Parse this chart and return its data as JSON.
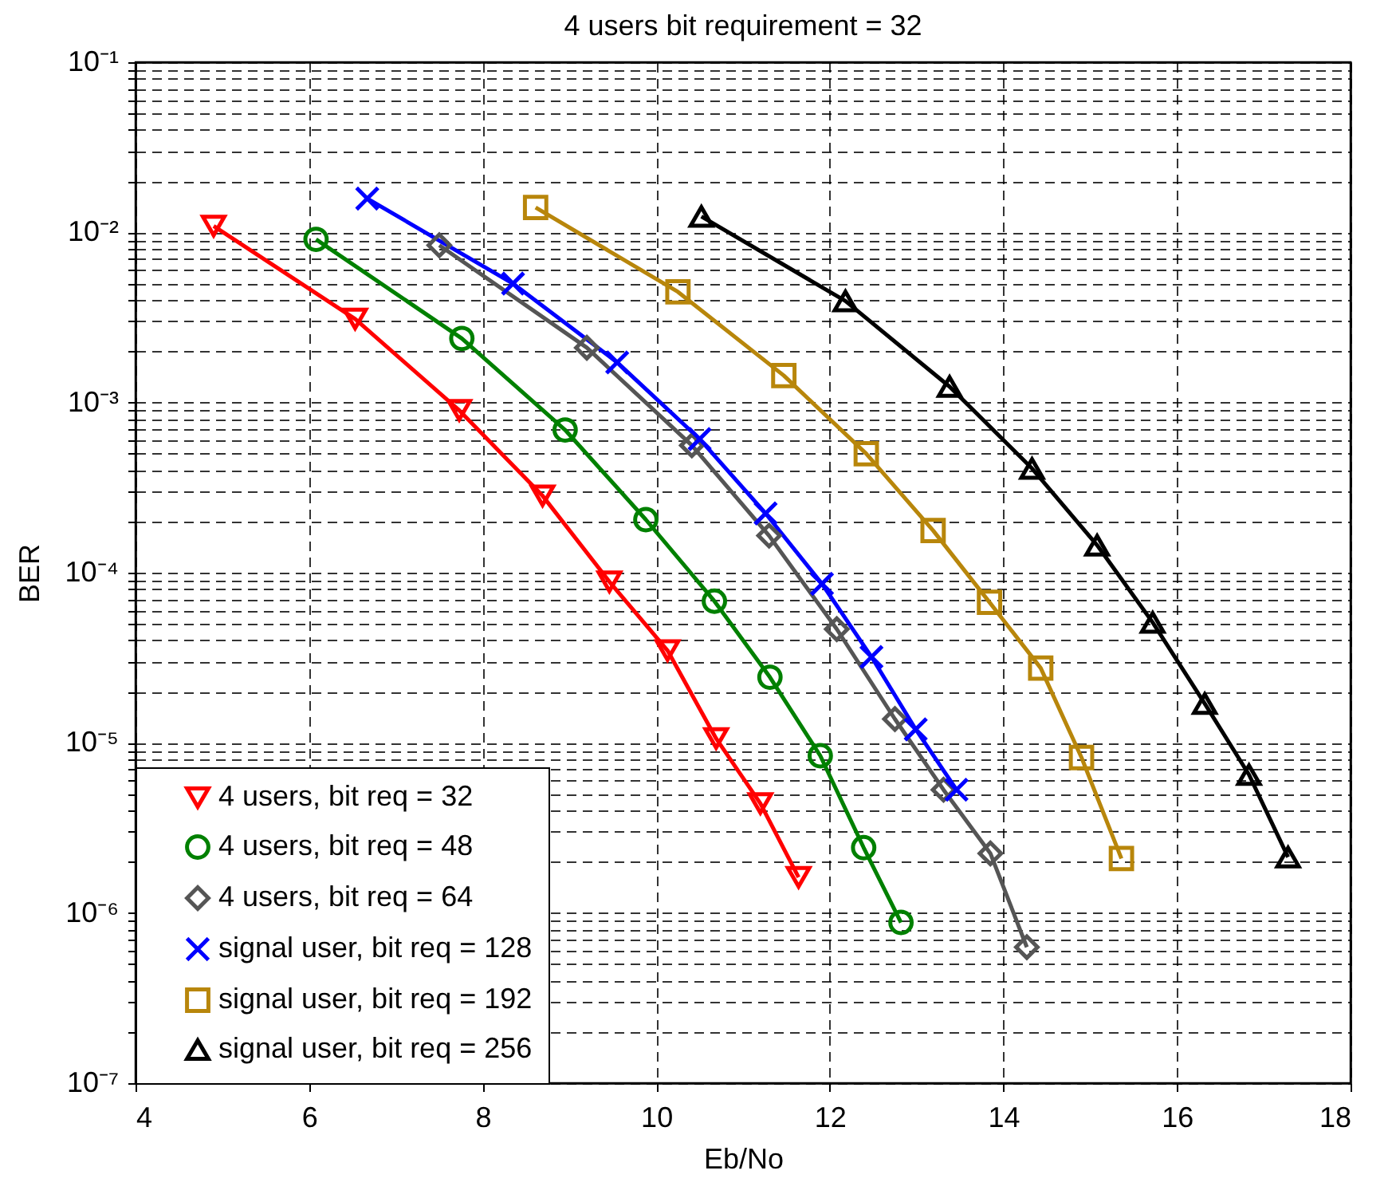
{
  "chart_data": {
    "type": "line",
    "title": "4 users bit requirement = 32",
    "xlabel": "Eb/No",
    "ylabel": "BER",
    "log": "y",
    "grid": true,
    "legend": "bottom left",
    "line_style": "solid",
    "xlim": [
      4,
      18
    ],
    "xticks": [
      4,
      6,
      8,
      10,
      12,
      14,
      16,
      18
    ],
    "ylim": [
      1e-07,
      0.1
    ],
    "yticks": [
      {
        "value": 1e-07,
        "label": "10⁻⁷"
      },
      {
        "value": 2e-07,
        "label": null
      },
      {
        "value": 3e-07,
        "label": null
      },
      {
        "value": 4e-07,
        "label": null
      },
      {
        "value": 5e-07,
        "label": null
      },
      {
        "value": 6e-07,
        "label": null
      },
      {
        "value": 7e-07,
        "label": null
      },
      {
        "value": 8e-07,
        "label": null
      },
      {
        "value": 9e-07,
        "label": null
      },
      {
        "value": 1e-06,
        "label": "10⁻⁶"
      },
      {
        "value": 2e-06,
        "label": null
      },
      {
        "value": 3e-06,
        "label": null
      },
      {
        "value": 4e-06,
        "label": null
      },
      {
        "value": 5e-06,
        "label": null
      },
      {
        "value": 6e-06,
        "label": null
      },
      {
        "value": 7e-06,
        "label": null
      },
      {
        "value": 8e-06,
        "label": null
      },
      {
        "value": 9e-06,
        "label": null
      },
      {
        "value": 1e-05,
        "label": "10⁻⁵"
      },
      {
        "value": 2e-05,
        "label": null
      },
      {
        "value": 3e-05,
        "label": null
      },
      {
        "value": 4e-05,
        "label": null
      },
      {
        "value": 5e-05,
        "label": null
      },
      {
        "value": 6e-05,
        "label": null
      },
      {
        "value": 7e-05,
        "label": null
      },
      {
        "value": 8e-05,
        "label": null
      },
      {
        "value": 9e-05,
        "label": null
      },
      {
        "value": 0.0001,
        "label": "10⁻⁴"
      },
      {
        "value": 0.0002,
        "label": null
      },
      {
        "value": 0.0003,
        "label": null
      },
      {
        "value": 0.0004,
        "label": null
      },
      {
        "value": 0.0005,
        "label": null
      },
      {
        "value": 0.0006,
        "label": null
      },
      {
        "value": 0.0007,
        "label": null
      },
      {
        "value": 0.0008,
        "label": null
      },
      {
        "value": 0.0009,
        "label": null
      },
      {
        "value": 0.001,
        "label": "10⁻³"
      },
      {
        "value": 0.002,
        "label": null
      },
      {
        "value": 0.003,
        "label": null
      },
      {
        "value": 0.004,
        "label": null
      },
      {
        "value": 0.005,
        "label": null
      },
      {
        "value": 0.006,
        "label": null
      },
      {
        "value": 0.007,
        "label": null
      },
      {
        "value": 0.008,
        "label": null
      },
      {
        "value": 0.009,
        "label": null
      },
      {
        "value": 0.01,
        "label": "10⁻²"
      },
      {
        "value": 0.02,
        "label": null
      },
      {
        "value": 0.03,
        "label": null
      },
      {
        "value": 0.04,
        "label": null
      },
      {
        "value": 0.05,
        "label": null
      },
      {
        "value": 0.06,
        "label": null
      },
      {
        "value": 0.07,
        "label": null
      },
      {
        "value": 0.08,
        "label": null
      },
      {
        "value": 0.09,
        "label": null
      },
      {
        "value": 0.1,
        "label": "10⁻¹"
      }
    ],
    "series": [
      {
        "name": "4 users, bit req = 32",
        "color": "#ff0000",
        "marker": "triangle-down",
        "x": [
          4.9,
          6.53,
          7.73,
          8.69,
          9.46,
          10.13,
          10.69,
          11.2,
          11.64
        ],
        "values": [
          0.0109,
          0.0031,
          0.0009,
          0.000283,
          8.85e-05,
          3.49e-05,
          1.06e-05,
          4.4e-06,
          1.62e-06
        ]
      },
      {
        "name": "4 users, bit req = 48",
        "color": "#008000",
        "marker": "circle",
        "x": [
          6.08,
          7.76,
          8.95,
          9.88,
          10.67,
          11.31,
          11.89,
          12.39,
          12.82
        ],
        "values": [
          0.0091,
          0.00238,
          0.00069,
          0.000205,
          6.8e-05,
          2.43e-05,
          8.4e-06,
          2.42e-06,
          8.8e-07
        ]
      },
      {
        "name": "4 users, bit req = 64",
        "color": "#555555",
        "marker": "diamond",
        "x": [
          7.5,
          9.2,
          10.41,
          11.3,
          12.08,
          12.75,
          13.31,
          13.85,
          14.27
        ],
        "values": [
          0.0084,
          0.0021,
          0.00056,
          0.000165,
          4.66e-05,
          1.38e-05,
          5.3e-06,
          2.24e-06,
          6.3e-07
        ]
      },
      {
        "name": "signal user, bit req = 128",
        "color": "#0000ff",
        "marker": "cross",
        "x": [
          6.67,
          8.35,
          9.55,
          10.5,
          11.26,
          11.91,
          12.48,
          12.99,
          13.46
        ],
        "values": [
          0.0158,
          0.005,
          0.00172,
          0.00061,
          0.000223,
          8.6e-05,
          3.2e-05,
          1.2e-05,
          5.3e-06
        ]
      },
      {
        "name": "signal user, bit req = 192",
        "color": "#b8860b",
        "marker": "square",
        "x": [
          8.61,
          10.25,
          11.47,
          12.42,
          13.19,
          13.84,
          14.43,
          14.9,
          15.36
        ],
        "values": [
          0.014,
          0.00447,
          0.00144,
          0.0005,
          0.000177,
          6.7e-05,
          2.75e-05,
          8.2e-06,
          2.09e-06
        ]
      },
      {
        "name": "signal user, bit req = 256",
        "color": "#000000",
        "marker": "triangle",
        "x": [
          10.52,
          12.18,
          13.38,
          14.33,
          15.08,
          15.72,
          16.32,
          16.83,
          17.28
        ],
        "values": [
          0.0124,
          0.00395,
          0.00124,
          0.00041,
          0.000145,
          5.1e-05,
          1.7e-05,
          6.5e-06,
          2.13e-06
        ]
      }
    ]
  }
}
